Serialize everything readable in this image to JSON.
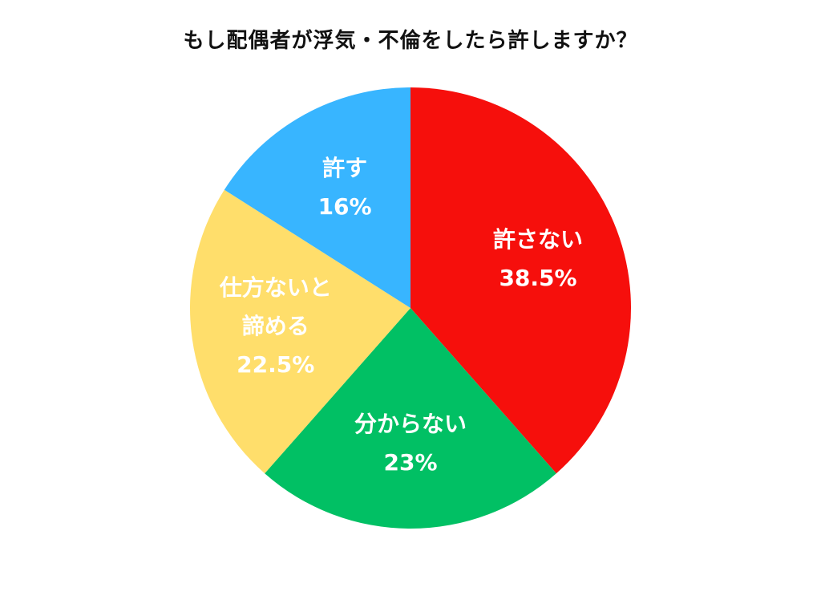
{
  "chart_data": {
    "type": "pie",
    "title": "もし配偶者が浮気・不倫をしたら許しますか？",
    "slices": [
      {
        "label_lines": [
          "許さない"
        ],
        "value": 38.5,
        "value_label": "38.5%",
        "color": "#f60f0c"
      },
      {
        "label_lines": [
          "分からない"
        ],
        "value": 23,
        "value_label": "23%",
        "color": "#01c064"
      },
      {
        "label_lines": [
          "仕方ないと",
          "諦める"
        ],
        "value": 22.5,
        "value_label": "22.5%",
        "color": "#ffde6b"
      },
      {
        "label_lines": [
          "許す"
        ],
        "value": 16,
        "value_label": "16%",
        "color": "#38b5ff"
      }
    ],
    "start": "12 o'clock",
    "direction": "clockwise",
    "legend": "none"
  }
}
